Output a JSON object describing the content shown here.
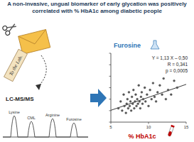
{
  "header": {
    "title": "A non-invasive, ungual biomarker of early glycation was positively correlated with % HbA1c among diabetic people"
  },
  "diagram": {
    "envelope_label": "To the Lab.",
    "method": "LC-MS/MS",
    "peaks": [
      "Lysine",
      "CML",
      "Arginine",
      "Furosine"
    ]
  },
  "chart_data": {
    "type": "scatter",
    "title": "Furosine",
    "x_label": "% HbA1c",
    "annotations": [
      "Y = 1,13 X – 0,50",
      "R = 0,341",
      "p = 0,0005"
    ],
    "fit": {
      "slope": 1.13,
      "intercept": -0.5
    },
    "x": [
      6.0,
      6.3,
      6.5,
      6.7,
      6.8,
      7.0,
      7.1,
      7.2,
      7.3,
      7.4,
      7.5,
      7.6,
      7.7,
      7.8,
      7.9,
      8.0,
      8.1,
      8.2,
      8.3,
      8.4,
      8.5,
      8.6,
      8.7,
      8.8,
      8.9,
      9.0,
      9.1,
      9.2,
      9.3,
      9.5,
      9.6,
      9.8,
      10.0,
      10.2,
      10.4,
      10.6,
      10.8,
      11.0,
      11.2,
      11.5,
      11.8,
      12.0,
      12.3,
      12.6,
      13.0,
      13.4,
      13.8
    ],
    "values": [
      6,
      9,
      5,
      12,
      7,
      4,
      8,
      10,
      6,
      13,
      7,
      9,
      5,
      11,
      8,
      14,
      6,
      9,
      12,
      7,
      10,
      8,
      16,
      9,
      6,
      11,
      13,
      8,
      10,
      15,
      9,
      12,
      7,
      14,
      10,
      17,
      11,
      9,
      13,
      16,
      12,
      19,
      10,
      14,
      12,
      18,
      15
    ],
    "xlim": [
      5,
      15
    ],
    "ylim": [
      0,
      30
    ],
    "xticks": [
      5,
      10,
      15
    ],
    "yticks": [
      0,
      5,
      10,
      15,
      20,
      25,
      30
    ],
    "color": "#555555",
    "marker": "circle",
    "grid": false,
    "tick_labels": "x"
  }
}
